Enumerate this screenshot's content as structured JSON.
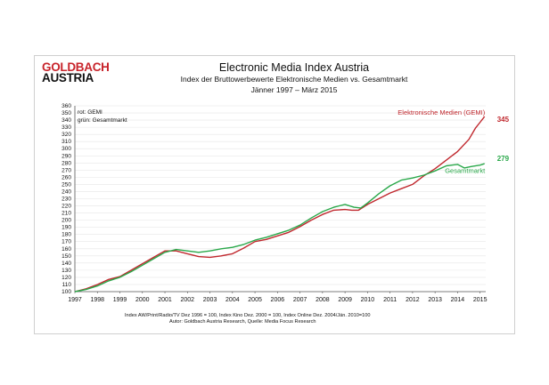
{
  "header": {
    "logo_line1": "GOLDBACH",
    "logo_line2": "AUSTRIA",
    "title": "Electronic Media Index Austria",
    "subtitle": "Index der Bruttowerbewerte Elektronische Medien vs. Gesamtmarkt",
    "period": "Jänner 1997 –  März 2015"
  },
  "footer": {
    "note1": "Index AW/Print/Radio/TV Dez 1996 = 100, Index Kino Dez. 2000 = 100, Index Online Dez. 2004/Jän. 2010=100",
    "note2": "Autor: Goldbach Austria Research, Quelle: Media Focus Research"
  },
  "chart_data": {
    "type": "line",
    "title": "Electronic Media Index Austria",
    "xlabel": "",
    "ylabel": "",
    "ylim": [
      100,
      360
    ],
    "xlim": [
      1997,
      2015.25
    ],
    "yticks": [
      "100",
      "110",
      "120",
      "130",
      "140",
      "150",
      "160",
      "170",
      "180",
      "190",
      "200",
      "210",
      "220",
      "230",
      "240",
      "250",
      "260",
      "270",
      "280",
      "290",
      "300",
      "310",
      "320",
      "330",
      "340",
      "350",
      "360"
    ],
    "xticks": [
      "1997",
      "1998",
      "1999",
      "2000",
      "2001",
      "2002",
      "2003",
      "2004",
      "2005",
      "2006",
      "2007",
      "2008",
      "2009",
      "2010",
      "2011",
      "2012",
      "2013",
      "2014",
      "2015"
    ],
    "legend": [
      "rot: GEMI",
      "grün: Gesamtmarkt"
    ],
    "colors": {
      "red": "#c0282e",
      "green": "#2aa84a"
    },
    "series": [
      {
        "name": "Elektronische Medien (GEMI)",
        "color": "#c0282e",
        "end_label": "345",
        "points": [
          [
            1997.0,
            100
          ],
          [
            1997.5,
            104
          ],
          [
            1998.0,
            110
          ],
          [
            1998.5,
            117
          ],
          [
            1999.0,
            121
          ],
          [
            1999.5,
            130
          ],
          [
            2000.0,
            139
          ],
          [
            2000.5,
            148
          ],
          [
            2001.0,
            157
          ],
          [
            2001.5,
            157
          ],
          [
            2002.0,
            153
          ],
          [
            2002.5,
            149
          ],
          [
            2003.0,
            148
          ],
          [
            2003.5,
            150
          ],
          [
            2004.0,
            153
          ],
          [
            2004.5,
            161
          ],
          [
            2005.0,
            170
          ],
          [
            2005.5,
            173
          ],
          [
            2006.0,
            178
          ],
          [
            2006.5,
            183
          ],
          [
            2007.0,
            191
          ],
          [
            2007.5,
            200
          ],
          [
            2008.0,
            208
          ],
          [
            2008.5,
            214
          ],
          [
            2009.0,
            215
          ],
          [
            2009.3,
            214
          ],
          [
            2009.6,
            214
          ],
          [
            2010.0,
            222
          ],
          [
            2010.5,
            230
          ],
          [
            2011.0,
            238
          ],
          [
            2011.5,
            244
          ],
          [
            2012.0,
            250
          ],
          [
            2012.5,
            262
          ],
          [
            2013.0,
            272
          ],
          [
            2013.5,
            284
          ],
          [
            2014.0,
            296
          ],
          [
            2014.5,
            313
          ],
          [
            2014.8,
            329
          ],
          [
            2015.0,
            337
          ],
          [
            2015.2,
            345
          ]
        ]
      },
      {
        "name": "Gesamtmarkt",
        "color": "#2aa84a",
        "end_label": "279",
        "points": [
          [
            1997.0,
            100
          ],
          [
            1997.5,
            103
          ],
          [
            1998.0,
            108
          ],
          [
            1998.5,
            115
          ],
          [
            1999.0,
            120
          ],
          [
            1999.5,
            128
          ],
          [
            2000.0,
            137
          ],
          [
            2000.5,
            146
          ],
          [
            2001.0,
            155
          ],
          [
            2001.5,
            159
          ],
          [
            2002.0,
            157
          ],
          [
            2002.5,
            155
          ],
          [
            2003.0,
            157
          ],
          [
            2003.5,
            160
          ],
          [
            2004.0,
            162
          ],
          [
            2004.5,
            166
          ],
          [
            2005.0,
            172
          ],
          [
            2005.5,
            176
          ],
          [
            2006.0,
            181
          ],
          [
            2006.5,
            186
          ],
          [
            2007.0,
            193
          ],
          [
            2007.5,
            203
          ],
          [
            2008.0,
            212
          ],
          [
            2008.5,
            218
          ],
          [
            2009.0,
            222
          ],
          [
            2009.4,
            218
          ],
          [
            2009.7,
            217
          ],
          [
            2010.0,
            224
          ],
          [
            2010.5,
            237
          ],
          [
            2011.0,
            248
          ],
          [
            2011.5,
            256
          ],
          [
            2012.0,
            259
          ],
          [
            2012.5,
            263
          ],
          [
            2013.0,
            269
          ],
          [
            2013.5,
            276
          ],
          [
            2014.0,
            278
          ],
          [
            2014.3,
            273
          ],
          [
            2014.6,
            275
          ],
          [
            2015.0,
            277
          ],
          [
            2015.2,
            279
          ]
        ]
      }
    ],
    "annotations": [
      "Elektronische Medien (GEMI)",
      "Gesamtmarkt"
    ]
  }
}
